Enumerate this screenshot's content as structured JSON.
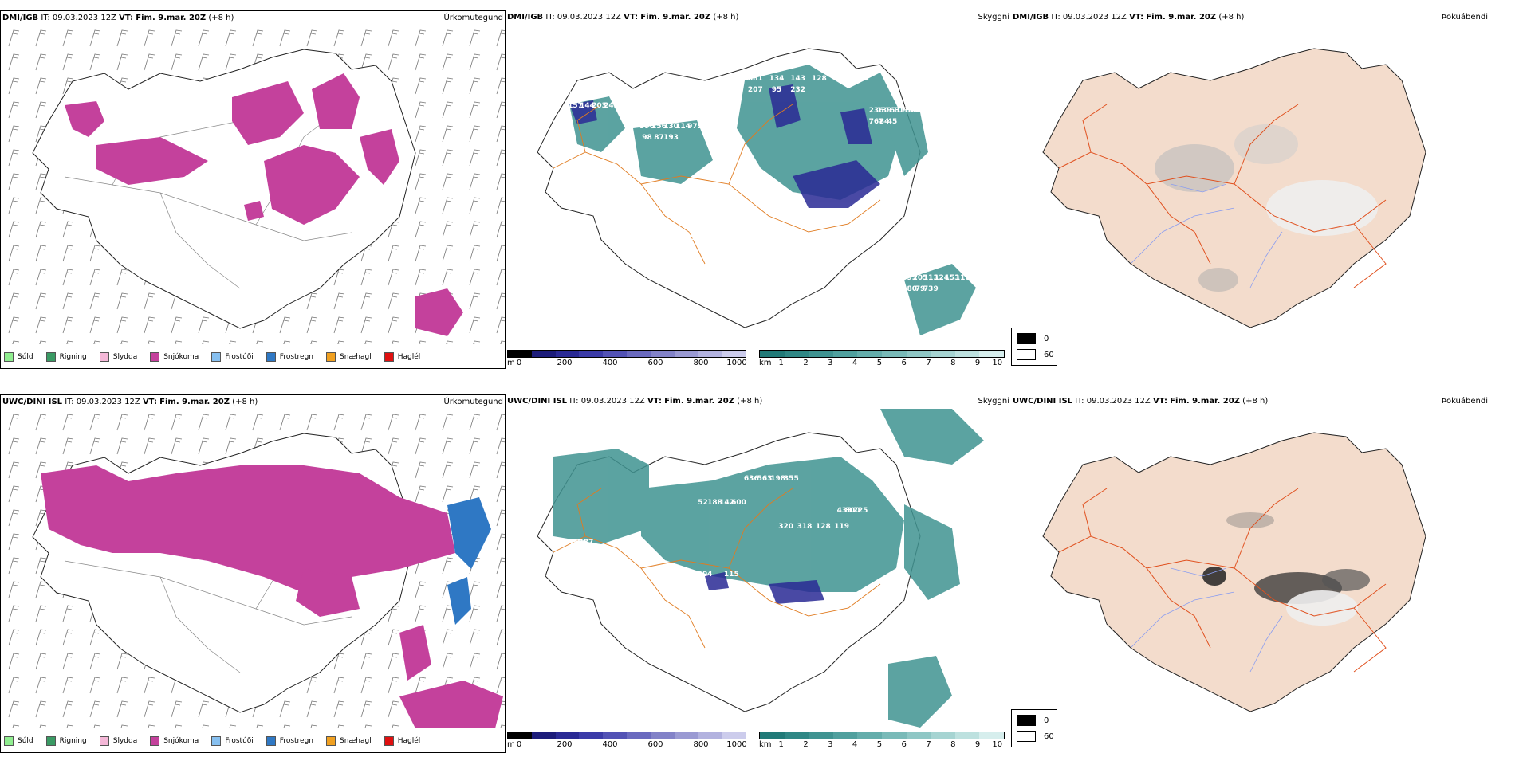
{
  "rows": [
    {
      "model": "DMI/IGB",
      "it_label": "IT:",
      "it_value": "09.03.2023 12Z",
      "vt_label": "VT:",
      "vt_value": "Fim. 9.mar. 20Z",
      "lead": "(+8 h)"
    },
    {
      "model": "UWC/DINI ISL",
      "it_label": "IT:",
      "it_value": "09.03.2023 12Z",
      "vt_label": "VT:",
      "vt_value": "Fim. 9.mar. 20Z",
      "lead": "(+8 h)"
    }
  ],
  "panels": {
    "precip_type": {
      "title": "Úrkomutegund"
    },
    "cloud_base": {
      "title": "Skyggni"
    },
    "fog": {
      "title": "Þokuábendi"
    }
  },
  "precip_legend": [
    {
      "label": "Súld",
      "color": "#90ee90"
    },
    {
      "label": "Rigning",
      "color": "#3a9a64"
    },
    {
      "label": "Slydda",
      "color": "#f5b8d8"
    },
    {
      "label": "Snjókoma",
      "color": "#c4419c"
    },
    {
      "label": "Frostúði",
      "color": "#87c0f0"
    },
    {
      "label": "Frostregn",
      "color": "#2f78c4"
    },
    {
      "label": "Snæhagl",
      "color": "#f0a020"
    },
    {
      "label": "Haglél",
      "color": "#e01010"
    }
  ],
  "height_bar": {
    "unit": "m",
    "ticks": [
      "0",
      "200",
      "400",
      "600",
      "800",
      "1000"
    ],
    "colors": [
      "#000000",
      "#1c1c7a",
      "#2a2a95",
      "#3b3ba8",
      "#5252b5",
      "#6a6abf",
      "#8282c8",
      "#9a9ad3",
      "#b2b2df",
      "#ccccec"
    ]
  },
  "vis_bar": {
    "unit": "km",
    "ticks": [
      "1",
      "2",
      "3",
      "4",
      "5",
      "6",
      "7",
      "8",
      "9",
      "10"
    ],
    "colors": [
      "#217a78",
      "#2f8785",
      "#3f9391",
      "#50a09e",
      "#64adab",
      "#79bab8",
      "#8fc7c5",
      "#a6d4d2",
      "#bde1df",
      "#d6eeed"
    ]
  },
  "fog_legend": {
    "items": [
      {
        "label": "0",
        "color": "#000000"
      },
      {
        "label": "60",
        "color": "#ffffff"
      }
    ]
  },
  "cloud_labels": [
    {
      "values": [
        "124",
        "596",
        "681",
        "236",
        "753",
        "693",
        "142",
        "256",
        "134",
        "139",
        "350",
        "205",
        "427",
        "130",
        "143",
        "163",
        "112",
        "113",
        "129",
        "114",
        "128",
        "109",
        "119",
        "124",
        "129",
        "979",
        "925",
        "730",
        "119",
        "153",
        "120",
        "163",
        "631",
        "545",
        "145",
        "118",
        "157",
        "98",
        "207",
        "767",
        "117",
        "180",
        "144",
        "87",
        "95",
        "84",
        "123",
        "79",
        "203",
        "193",
        "232",
        "45",
        "729",
        "739",
        "243"
      ]
    },
    {
      "values": [
        "636",
        "52",
        "320",
        "433",
        "280",
        "518",
        "563",
        "188",
        "318",
        "800",
        "904",
        "334",
        "198",
        "142",
        "128",
        "225",
        "115",
        "287",
        "355",
        "600",
        "119"
      ]
    }
  ]
}
